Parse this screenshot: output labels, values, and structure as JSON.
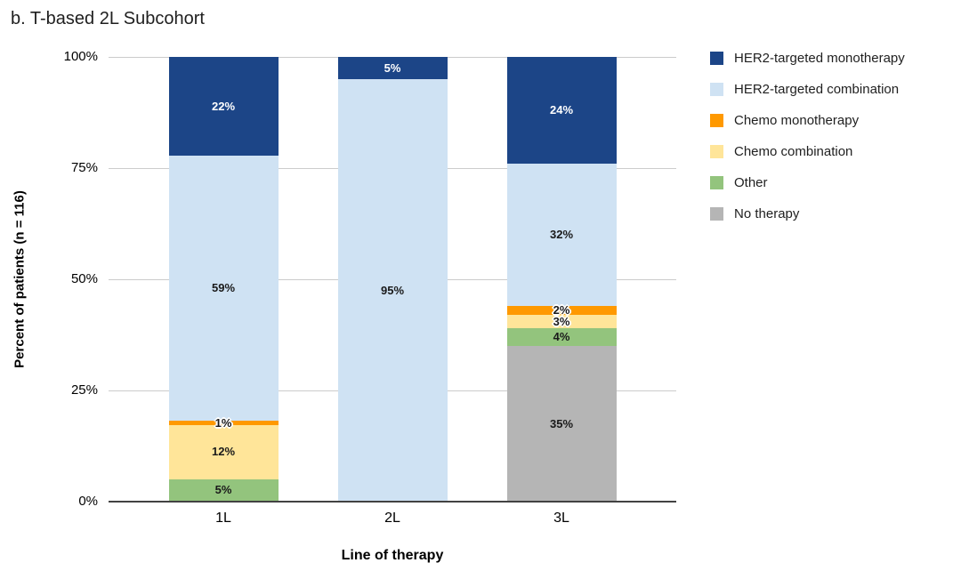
{
  "chart_data": {
    "type": "bar",
    "stacked": true,
    "title": "b. T-based 2L Subcohort",
    "xlabel": "Line of therapy",
    "ylabel": "Percent of patients (n = 116)",
    "categories": [
      "1L",
      "2L",
      "3L"
    ],
    "series": [
      {
        "name": "HER2-targeted monotherapy",
        "color": "#1C4587",
        "values": [
          22,
          5,
          24
        ]
      },
      {
        "name": "HER2-targeted combination",
        "color": "#CFE2F3",
        "values": [
          59,
          95,
          32
        ]
      },
      {
        "name": "Chemo monotherapy",
        "color": "#FF9900",
        "values": [
          1,
          0,
          2
        ]
      },
      {
        "name": "Chemo combination",
        "color": "#FFE599",
        "values": [
          12,
          0,
          3
        ]
      },
      {
        "name": "Other",
        "color": "#93C47D",
        "values": [
          5,
          0,
          4
        ]
      },
      {
        "name": "No therapy",
        "color": "#B5B5B5",
        "values": [
          0,
          0,
          35
        ]
      }
    ],
    "stack_order": "bottom-to-top is reverse of legend order",
    "yticks": [
      {
        "value": 0,
        "label": "0%"
      },
      {
        "value": 25,
        "label": "25%"
      },
      {
        "value": 50,
        "label": "50%"
      },
      {
        "value": 75,
        "label": "75%"
      },
      {
        "value": 100,
        "label": "100%"
      }
    ],
    "ylim": [
      0,
      100
    ],
    "grid": true,
    "legend_position": "right",
    "annotation_unit": "%",
    "axis_color": "#424242",
    "gridline_color": "#cccccc"
  }
}
